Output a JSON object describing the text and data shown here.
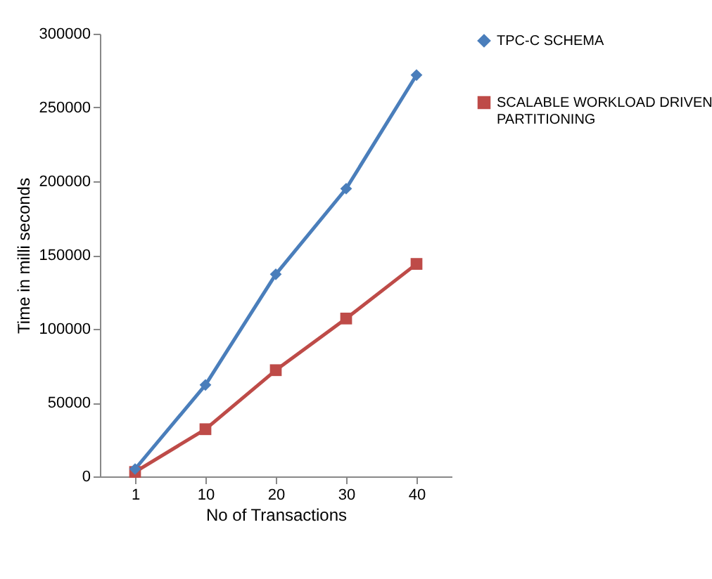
{
  "chart_data": {
    "type": "line",
    "xlabel": "No of Transactions",
    "ylabel": "Time in milli seconds",
    "categories": [
      "1",
      "10",
      "20",
      "30",
      "40"
    ],
    "series": [
      {
        "name": "TPC-C SCHEMA",
        "color": "#4a7ebb",
        "marker": "diamond",
        "values": [
          5000,
          62000,
          137000,
          195000,
          272000
        ]
      },
      {
        "name": "SCALABLE WORKLOAD DRIVEN PARTITIONING",
        "color": "#be4b48",
        "marker": "square",
        "values": [
          3000,
          32000,
          72000,
          107000,
          144000
        ]
      }
    ],
    "ylim": [
      0,
      300000
    ],
    "yticks": [
      0,
      50000,
      100000,
      150000,
      200000,
      250000,
      300000
    ],
    "grid": false,
    "legend": "right",
    "line_style": "solid"
  }
}
